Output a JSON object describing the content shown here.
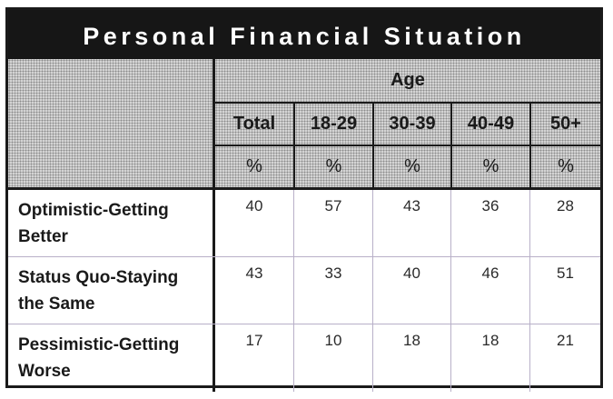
{
  "title": "Personal Financial Situation",
  "group_header": "Age",
  "columns": [
    "Total",
    "18-29",
    "30-39",
    "40-49",
    "50+"
  ],
  "units": [
    "%",
    "%",
    "%",
    "%",
    "%"
  ],
  "rows": [
    {
      "label_line1": "Optimistic-Getting",
      "label_line2": "Better",
      "values": [
        "40",
        "57",
        "43",
        "36",
        "28"
      ]
    },
    {
      "label_line1": "Status Quo-Staying",
      "label_line2": "the Same",
      "values": [
        "43",
        "33",
        "40",
        "46",
        "51"
      ]
    },
    {
      "label_line1": "Pessimistic-Getting",
      "label_line2": "Worse",
      "values": [
        "17",
        "10",
        "18",
        "18",
        "21"
      ]
    }
  ]
}
